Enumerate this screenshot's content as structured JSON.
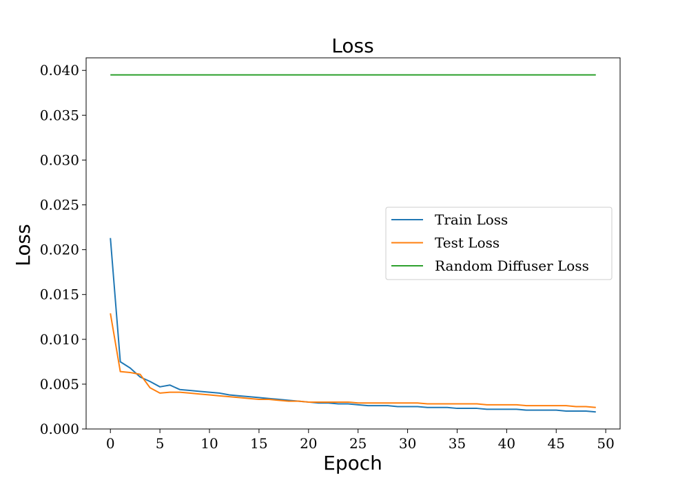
{
  "chart_data": {
    "type": "line",
    "title": "Loss",
    "xlabel": "Epoch",
    "ylabel": "Loss",
    "xlim": [
      -2.45,
      51.45
    ],
    "ylim": [
      0.0,
      0.0414
    ],
    "xticks": [
      0,
      5,
      10,
      15,
      20,
      25,
      30,
      35,
      40,
      45,
      50
    ],
    "xtick_labels": [
      "0",
      "5",
      "10",
      "15",
      "20",
      "25",
      "30",
      "35",
      "40",
      "45",
      "50"
    ],
    "yticks": [
      0.0,
      0.005,
      0.01,
      0.015,
      0.02,
      0.025,
      0.03,
      0.035,
      0.04
    ],
    "ytick_labels": [
      "0.000",
      "0.005",
      "0.010",
      "0.015",
      "0.020",
      "0.025",
      "0.030",
      "0.035",
      "0.040"
    ],
    "grid": false,
    "legend_position": "center-right",
    "x": [
      0,
      1,
      2,
      3,
      4,
      5,
      6,
      7,
      8,
      9,
      10,
      11,
      12,
      13,
      14,
      15,
      16,
      17,
      18,
      19,
      20,
      21,
      22,
      23,
      24,
      25,
      26,
      27,
      28,
      29,
      30,
      31,
      32,
      33,
      34,
      35,
      36,
      37,
      38,
      39,
      40,
      41,
      42,
      43,
      44,
      45,
      46,
      47,
      48,
      49
    ],
    "series": [
      {
        "name": "Train Loss",
        "color": "#1f77b4",
        "values": [
          0.0213,
          0.0075,
          0.0068,
          0.0058,
          0.0053,
          0.0047,
          0.0049,
          0.0044,
          0.0043,
          0.0042,
          0.0041,
          0.004,
          0.0038,
          0.0037,
          0.0036,
          0.0035,
          0.0034,
          0.0033,
          0.0032,
          0.0031,
          0.003,
          0.0029,
          0.0029,
          0.0028,
          0.0028,
          0.0027,
          0.0026,
          0.0026,
          0.0026,
          0.0025,
          0.0025,
          0.0025,
          0.0024,
          0.0024,
          0.0024,
          0.0023,
          0.0023,
          0.0023,
          0.0022,
          0.0022,
          0.0022,
          0.0022,
          0.0021,
          0.0021,
          0.0021,
          0.0021,
          0.002,
          0.002,
          0.002,
          0.0019
        ]
      },
      {
        "name": "Test Loss",
        "color": "#ff7f0e",
        "values": [
          0.0129,
          0.0064,
          0.0063,
          0.0061,
          0.0046,
          0.004,
          0.0041,
          0.0041,
          0.004,
          0.0039,
          0.0038,
          0.0037,
          0.0036,
          0.0035,
          0.0034,
          0.0033,
          0.0033,
          0.0032,
          0.0031,
          0.0031,
          0.003,
          0.003,
          0.003,
          0.003,
          0.003,
          0.0029,
          0.0029,
          0.0029,
          0.0029,
          0.0029,
          0.0029,
          0.0029,
          0.0028,
          0.0028,
          0.0028,
          0.0028,
          0.0028,
          0.0028,
          0.0027,
          0.0027,
          0.0027,
          0.0027,
          0.0026,
          0.0026,
          0.0026,
          0.0026,
          0.0026,
          0.0025,
          0.0025,
          0.0024
        ]
      },
      {
        "name": "Random Diffuser Loss",
        "color": "#2ca02c",
        "values": [
          0.0395,
          0.0395,
          0.0395,
          0.0395,
          0.0395,
          0.0395,
          0.0395,
          0.0395,
          0.0395,
          0.0395,
          0.0395,
          0.0395,
          0.0395,
          0.0395,
          0.0395,
          0.0395,
          0.0395,
          0.0395,
          0.0395,
          0.0395,
          0.0395,
          0.0395,
          0.0395,
          0.0395,
          0.0395,
          0.0395,
          0.0395,
          0.0395,
          0.0395,
          0.0395,
          0.0395,
          0.0395,
          0.0395,
          0.0395,
          0.0395,
          0.0395,
          0.0395,
          0.0395,
          0.0395,
          0.0395,
          0.0395,
          0.0395,
          0.0395,
          0.0395,
          0.0395,
          0.0395,
          0.0395,
          0.0395,
          0.0395,
          0.0395
        ]
      }
    ]
  }
}
